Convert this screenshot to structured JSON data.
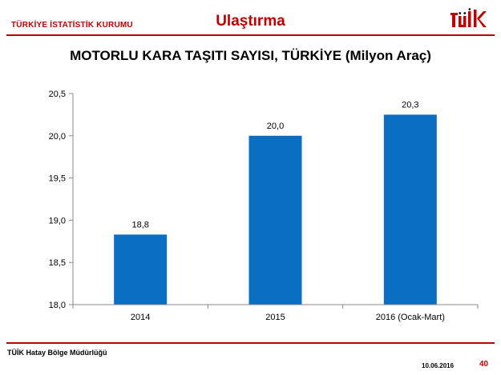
{
  "header": {
    "org_name": "TÜRKİYE İSTATİSTİK KURUMU",
    "section_title": "Ulaştırma",
    "logo_text": "TÜİK"
  },
  "slide": {
    "title": "MOTORLU KARA TAŞITI SAYISI, TÜRKİYE (Milyon Araç)"
  },
  "footer": {
    "office": "TÜİK Hatay Bölge Müdürlüğü",
    "date": "10.06.2016",
    "page_number": "40"
  },
  "colors": {
    "accent": "#c00000",
    "bar": "#0a6fc2"
  },
  "chart_data": {
    "type": "bar",
    "title": "MOTORLU KARA TAŞITI SAYISI, TÜRKİYE (Milyon Araç)",
    "categories": [
      "2014",
      "2015",
      "2016 (Ocak-Mart)"
    ],
    "values": [
      18.83,
      20.0,
      20.25
    ],
    "data_labels": [
      "18,8",
      "20,0",
      "20,3"
    ],
    "ylim": [
      18.0,
      20.5
    ],
    "yticks": [
      18.0,
      18.5,
      19.0,
      19.5,
      20.0,
      20.5
    ],
    "ytick_labels": [
      "18,0",
      "18,5",
      "19,0",
      "19,5",
      "20,0",
      "20,5"
    ],
    "xlabel": "",
    "ylabel": "",
    "grid": false,
    "legend": "none"
  }
}
